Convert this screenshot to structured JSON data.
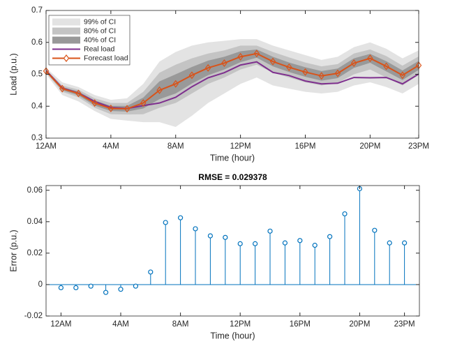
{
  "chart_data": [
    {
      "type": "line",
      "x": [
        0,
        1,
        2,
        3,
        4,
        5,
        6,
        7,
        8,
        9,
        10,
        11,
        12,
        13,
        14,
        15,
        16,
        17,
        18,
        19,
        20,
        21,
        22,
        23
      ],
      "xlim": [
        0,
        23
      ],
      "xticks": [
        {
          "value": 0,
          "label": "12AM"
        },
        {
          "value": 4,
          "label": "4AM"
        },
        {
          "value": 8,
          "label": "8AM"
        },
        {
          "value": 12,
          "label": "12PM"
        },
        {
          "value": 16,
          "label": "16PM"
        },
        {
          "value": 20,
          "label": "20PM"
        },
        {
          "value": 23,
          "label": "23PM"
        }
      ],
      "ylim": [
        0.3,
        0.7
      ],
      "yticks": [
        0.3,
        0.4,
        0.5,
        0.6,
        0.7
      ],
      "xlabel": "Time (hour)",
      "ylabel": "Load (p.u.)",
      "legend": "upper left",
      "bands": [
        {
          "name": "99% of CI",
          "color": "#e3e3e3",
          "upper": [
            0.52,
            0.475,
            0.46,
            0.435,
            0.42,
            0.425,
            0.47,
            0.54,
            0.57,
            0.59,
            0.6,
            0.605,
            0.61,
            0.61,
            0.59,
            0.575,
            0.56,
            0.545,
            0.555,
            0.585,
            0.6,
            0.58,
            0.55,
            0.575
          ],
          "lower": [
            0.5,
            0.435,
            0.415,
            0.385,
            0.36,
            0.355,
            0.35,
            0.35,
            0.335,
            0.37,
            0.41,
            0.44,
            0.47,
            0.49,
            0.465,
            0.455,
            0.445,
            0.44,
            0.445,
            0.465,
            0.475,
            0.46,
            0.44,
            0.47
          ]
        },
        {
          "name": "80% of CI",
          "color": "#c4c4c4",
          "upper": [
            0.515,
            0.465,
            0.452,
            0.425,
            0.41,
            0.41,
            0.445,
            0.505,
            0.53,
            0.55,
            0.565,
            0.575,
            0.59,
            0.59,
            0.57,
            0.553,
            0.537,
            0.525,
            0.532,
            0.565,
            0.578,
            0.557,
            0.527,
            0.556
          ],
          "lower": [
            0.505,
            0.445,
            0.428,
            0.395,
            0.375,
            0.374,
            0.375,
            0.395,
            0.41,
            0.44,
            0.47,
            0.49,
            0.515,
            0.53,
            0.505,
            0.49,
            0.475,
            0.465,
            0.473,
            0.5,
            0.515,
            0.49,
            0.465,
            0.498
          ]
        },
        {
          "name": "40% of CI",
          "color": "#999999",
          "upper": [
            0.513,
            0.46,
            0.446,
            0.418,
            0.401,
            0.401,
            0.427,
            0.478,
            0.5,
            0.523,
            0.543,
            0.555,
            0.572,
            0.578,
            0.555,
            0.537,
            0.522,
            0.51,
            0.518,
            0.55,
            0.564,
            0.541,
            0.512,
            0.542
          ],
          "lower": [
            0.507,
            0.45,
            0.434,
            0.402,
            0.385,
            0.383,
            0.393,
            0.422,
            0.44,
            0.471,
            0.497,
            0.515,
            0.538,
            0.552,
            0.525,
            0.507,
            0.492,
            0.48,
            0.488,
            0.52,
            0.536,
            0.509,
            0.482,
            0.514
          ]
        }
      ],
      "series": [
        {
          "name": "Real load",
          "color": "#7e2f8e",
          "values": [
            0.512,
            0.457,
            0.441,
            0.415,
            0.396,
            0.393,
            0.402,
            0.41,
            0.428,
            0.461,
            0.489,
            0.505,
            0.529,
            0.539,
            0.506,
            0.496,
            0.479,
            0.47,
            0.472,
            0.49,
            0.489,
            0.49,
            0.47,
            0.501
          ]
        },
        {
          "name": "Forecast load",
          "color": "#d95319",
          "marker": "diamond",
          "values": [
            0.51,
            0.455,
            0.44,
            0.41,
            0.393,
            0.392,
            0.41,
            0.45,
            0.47,
            0.497,
            0.52,
            0.535,
            0.555,
            0.565,
            0.54,
            0.522,
            0.507,
            0.495,
            0.503,
            0.535,
            0.55,
            0.525,
            0.497,
            0.528
          ]
        }
      ]
    },
    {
      "type": "stem",
      "title": "RMSE = 0.029378",
      "x": [
        0,
        1,
        2,
        3,
        4,
        5,
        6,
        7,
        8,
        9,
        10,
        11,
        12,
        13,
        14,
        15,
        16,
        17,
        18,
        19,
        20,
        21,
        22,
        23
      ],
      "xlim": [
        -1,
        24
      ],
      "xticks": [
        {
          "value": 0,
          "label": "12AM"
        },
        {
          "value": 4,
          "label": "4AM"
        },
        {
          "value": 8,
          "label": "8AM"
        },
        {
          "value": 12,
          "label": "12PM"
        },
        {
          "value": 16,
          "label": "16PM"
        },
        {
          "value": 20,
          "label": "20PM"
        },
        {
          "value": 23,
          "label": "23PM"
        }
      ],
      "ylim": [
        -0.02,
        0.063
      ],
      "yticks": [
        -0.02,
        0,
        0.02,
        0.04,
        0.06
      ],
      "xlabel": "Time (hour)",
      "ylabel": "Error (p.u.)",
      "series": [
        {
          "color": "#0072bd",
          "marker": "circle",
          "values": [
            -0.002,
            -0.002,
            -0.001,
            -0.005,
            -0.003,
            -0.001,
            0.008,
            0.0395,
            0.0425,
            0.0355,
            0.031,
            0.03,
            0.026,
            0.026,
            0.034,
            0.0265,
            0.028,
            0.025,
            0.0305,
            0.045,
            0.061,
            0.0345,
            0.0265,
            0.0265
          ]
        }
      ]
    }
  ]
}
